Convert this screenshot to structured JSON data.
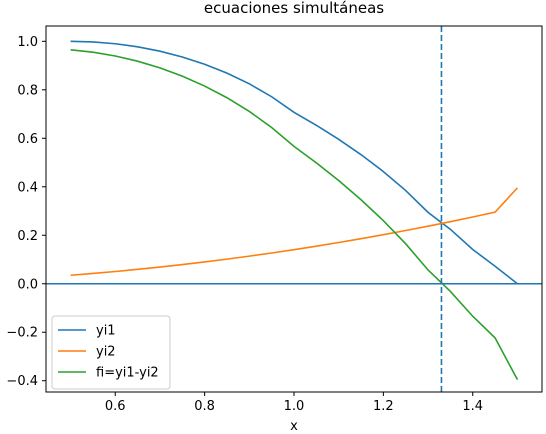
{
  "chart_data": {
    "type": "line",
    "title": "ecuaciones simultáneas",
    "xlabel": "x",
    "ylabel": "",
    "xlim": [
      0.445,
      1.555
    ],
    "ylim": [
      -0.4465,
      1.0632
    ],
    "xticks": [
      {
        "value": 0.6,
        "label": "0.6"
      },
      {
        "value": 0.8,
        "label": "0.8"
      },
      {
        "value": 1.0,
        "label": "1.0"
      },
      {
        "value": 1.2,
        "label": "1.2"
      },
      {
        "value": 1.4,
        "label": "1.4"
      }
    ],
    "yticks": [
      {
        "value": -0.4,
        "label": "−0.4"
      },
      {
        "value": -0.2,
        "label": "−0.2"
      },
      {
        "value": 0.0,
        "label": "0.0"
      },
      {
        "value": 0.2,
        "label": "0.2"
      },
      {
        "value": 0.4,
        "label": "0.4"
      },
      {
        "value": 0.6,
        "label": "0.6"
      },
      {
        "value": 0.8,
        "label": "0.8"
      },
      {
        "value": 1.0,
        "label": "1.0"
      }
    ],
    "grid": false,
    "legend_position": "lower-left",
    "x": [
      0.5,
      0.55,
      0.6,
      0.65,
      0.7,
      0.75,
      0.8,
      0.85,
      0.9,
      0.95,
      1.0,
      1.05,
      1.1,
      1.15,
      1.2,
      1.25,
      1.3,
      1.35,
      1.4,
      1.45,
      1.5
    ],
    "series": [
      {
        "name": "yi1",
        "color": "#1f77b4",
        "values": [
          1.0,
          0.9975,
          0.99,
          0.9774,
          0.9592,
          0.9354,
          0.9055,
          0.8689,
          0.8246,
          0.7714,
          0.7071,
          0.6538,
          0.5958,
          0.5325,
          0.4627,
          0.3844,
          0.2944,
          0.2245,
          0.1414,
          0.0721,
          0.0
        ]
      },
      {
        "name": "yi2",
        "color": "#ff7f0e",
        "values": [
          0.0351,
          0.0425,
          0.0506,
          0.0594,
          0.0689,
          0.0791,
          0.09,
          0.1016,
          0.1139,
          0.1269,
          0.1406,
          0.155,
          0.1701,
          0.1859,
          0.2024,
          0.2196,
          0.2375,
          0.2561,
          0.2754,
          0.2954,
          0.3955
        ]
      },
      {
        "name": "fi=yi1-yi2",
        "color": "#2ca02c",
        "values": [
          0.9649,
          0.955,
          0.9394,
          0.918,
          0.8903,
          0.8563,
          0.8155,
          0.7673,
          0.7107,
          0.6445,
          0.5665,
          0.4988,
          0.4257,
          0.3466,
          0.2603,
          0.1648,
          0.0569,
          -0.0316,
          -0.134,
          -0.2233,
          -0.3955
        ]
      }
    ],
    "hline": {
      "y": 0.0,
      "color": "#1f77b4"
    },
    "vline": {
      "x": 1.33,
      "color": "#1f77b4",
      "style": "dashed"
    }
  }
}
